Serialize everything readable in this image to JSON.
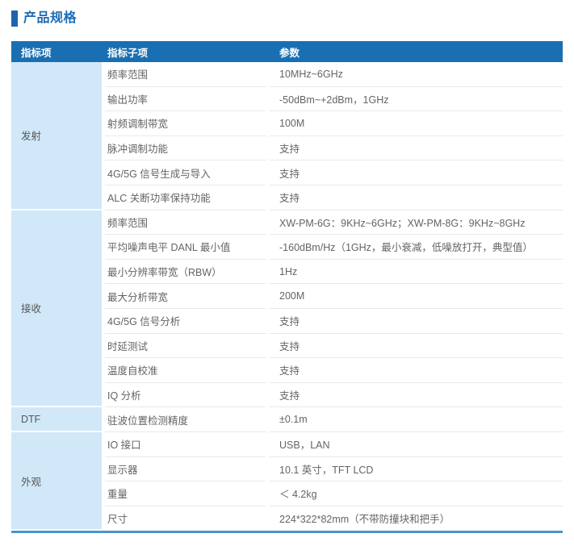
{
  "title": "产品规格",
  "table": {
    "headers": [
      "指标项",
      "指标子项",
      "参数"
    ],
    "groups": [
      {
        "name": "发射",
        "rows": [
          [
            "频率范围",
            "10MHz~6GHz"
          ],
          [
            "输出功率",
            "-50dBm~+2dBm，1GHz"
          ],
          [
            "射频调制带宽",
            "100M"
          ],
          [
            "脉冲调制功能",
            "支持"
          ],
          [
            "4G/5G 信号生成与导入",
            "支持"
          ],
          [
            "ALC 关断功率保持功能",
            "支持"
          ]
        ]
      },
      {
        "name": "接收",
        "rows": [
          [
            "频率范围",
            "XW-PM-6G：9KHz~6GHz；XW-PM-8G：9KHz~8GHz"
          ],
          [
            "平均噪声电平 DANL 最小值",
            "-160dBm/Hz（1GHz，最小衰减，低噪放打开，典型值）"
          ],
          [
            "最小分辨率带宽（RBW）",
            "1Hz"
          ],
          [
            "最大分析带宽",
            "200M"
          ],
          [
            "4G/5G 信号分析",
            "支持"
          ],
          [
            "时延测试",
            "支持"
          ],
          [
            "温度自校准",
            "支持"
          ],
          [
            "IQ 分析",
            "支持"
          ]
        ]
      },
      {
        "name": "DTF",
        "rows": [
          [
            "驻波位置检测精度",
            "±0.1m"
          ]
        ]
      },
      {
        "name": "外观",
        "rows": [
          [
            "IO 接口",
            "USB，LAN"
          ],
          [
            "显示器",
            "10.1 英寸，TFT LCD"
          ],
          [
            "重量",
            "＜ 4.2kg"
          ],
          [
            "尺寸",
            "224*322*82mm（不带防撞块和把手）"
          ]
        ]
      }
    ]
  },
  "colors": {
    "header_bg": "#1a6fb2",
    "group_bg": "#d1e8f8",
    "accent_bar": "#1d64ad",
    "title_text": "#1b6cb5",
    "bottom_border": "#4b94ce",
    "row_border": "#e9e9e9",
    "body_text": "#646464",
    "group_text": "#55595c"
  }
}
